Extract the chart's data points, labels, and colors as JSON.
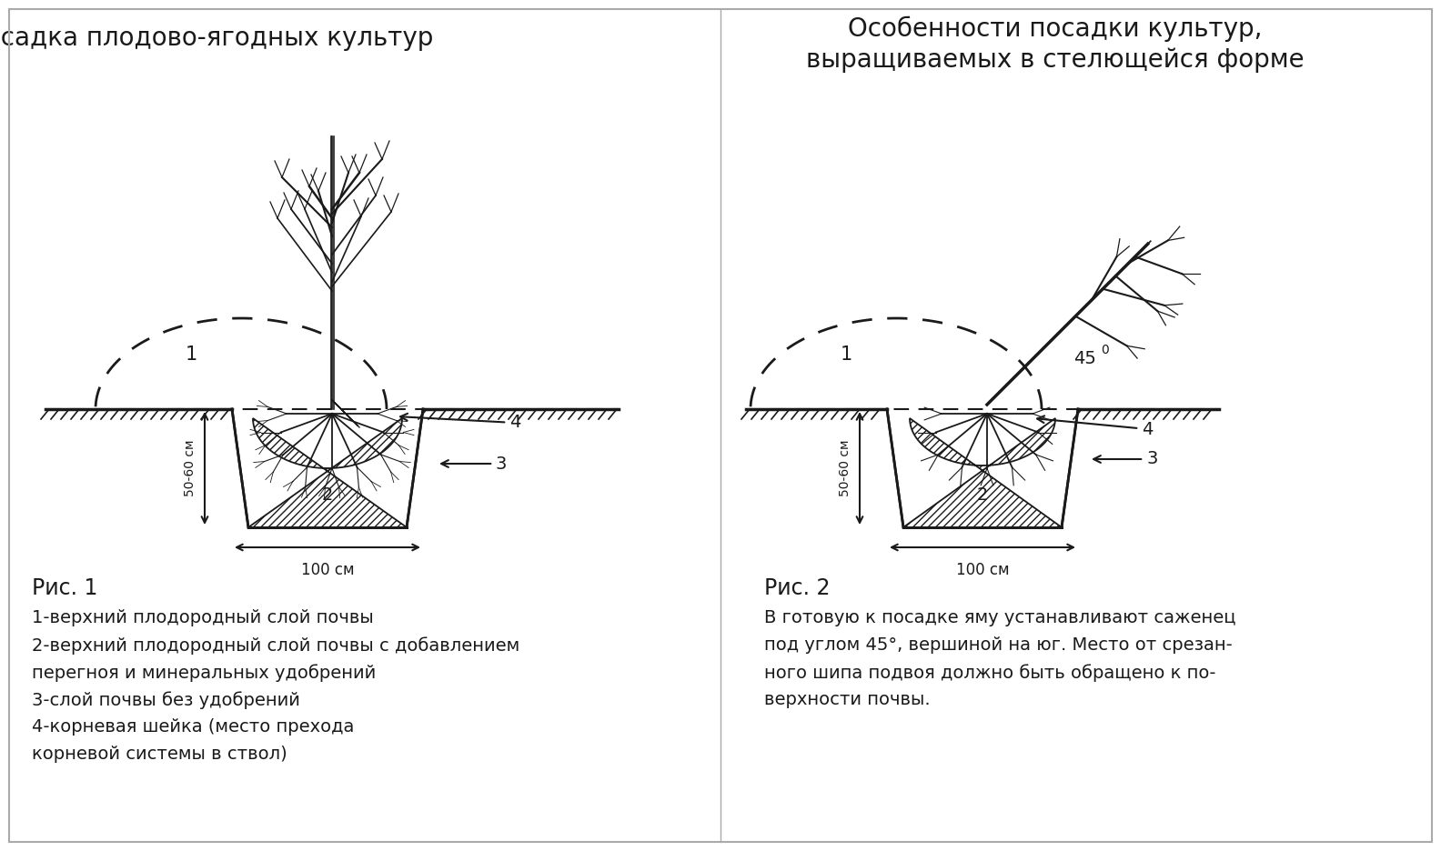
{
  "title1": "Посадка плодово-ягодных культур",
  "title2_line1": "Особенности посадки культур,",
  "title2_line2": "выращиваемых в стелющейся форме",
  "caption1_title": "Рис. 1",
  "caption1_lines": [
    "1-верхний плодородный слой почвы",
    "2-верхний плодородный слой почвы с добавлением",
    "перегноя и минеральных удобрений",
    "3-слой почвы без удобрений",
    "4-корневая шейка (место прехода",
    "корневой системы в ствол)"
  ],
  "caption2_title": "Рис. 2",
  "caption2_lines": [
    "В готовую к посадке яму устанавливают саженец",
    "под углом 45°, вершиной на юг. Место от срезан-",
    "ного шипа подвоя должно быть обращено к по-",
    "верхности почвы."
  ],
  "bg_color": "#ffffff",
  "line_color": "#1a1a1a"
}
